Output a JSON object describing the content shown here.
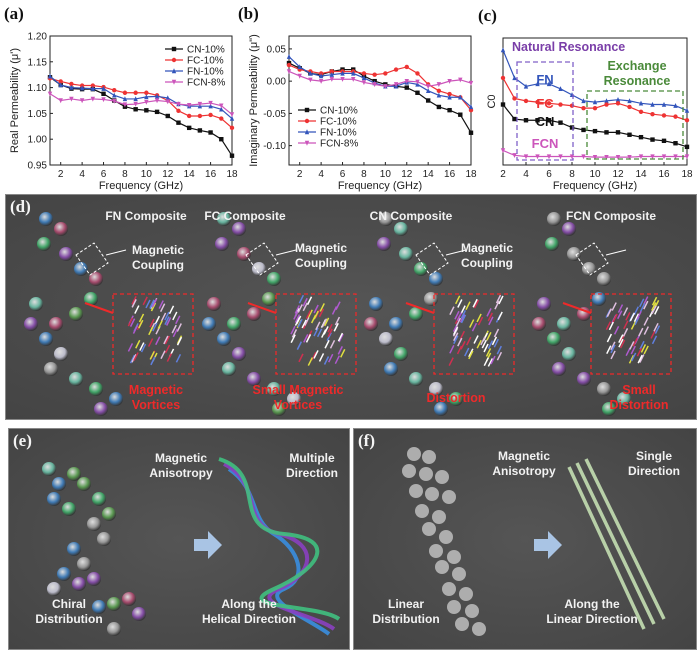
{
  "panels": {
    "a": "(a)",
    "b": "(b)",
    "c": "(c)",
    "d": "(d)",
    "e": "(e)",
    "f": "(f)"
  },
  "chart_data": [
    {
      "type": "line",
      "id": "a",
      "title": "",
      "xlabel": "Frequency (GHz)",
      "ylabel": "Real Permeability (μ')",
      "xlim": [
        1,
        18
      ],
      "ylim": [
        0.95,
        1.2
      ],
      "xticks": [
        2,
        4,
        6,
        8,
        10,
        12,
        14,
        16,
        18
      ],
      "yticks": [
        0.95,
        1.0,
        1.05,
        1.1,
        1.15,
        1.2
      ],
      "ytick_labels": [
        "0.95",
        "1.00",
        "1.05",
        "1.10",
        "1.15",
        "1.20"
      ],
      "legend_position": "top-right",
      "x": [
        1,
        2,
        3,
        4,
        5,
        6,
        7,
        8,
        9,
        10,
        11,
        12,
        13,
        14,
        15,
        16,
        17,
        18
      ],
      "series": [
        {
          "name": "CN-10%",
          "color": "#111111",
          "marker": "square",
          "values": [
            1.12,
            1.105,
            1.098,
            1.097,
            1.097,
            1.088,
            1.075,
            1.063,
            1.058,
            1.056,
            1.053,
            1.045,
            1.032,
            1.022,
            1.017,
            1.013,
            1.0,
            0.968
          ]
        },
        {
          "name": "FC-10%",
          "color": "#ee3333",
          "marker": "circle",
          "values": [
            1.118,
            1.112,
            1.107,
            1.104,
            1.104,
            1.101,
            1.095,
            1.09,
            1.09,
            1.09,
            1.085,
            1.075,
            1.055,
            1.045,
            1.045,
            1.047,
            1.04,
            1.022
          ]
        },
        {
          "name": "FN-10%",
          "color": "#3355bb",
          "marker": "triangle",
          "values": [
            1.122,
            1.105,
            1.1,
            1.099,
            1.098,
            1.098,
            1.085,
            1.078,
            1.078,
            1.082,
            1.083,
            1.08,
            1.068,
            1.064,
            1.064,
            1.064,
            1.058,
            1.04
          ]
        },
        {
          "name": "FCN-8%",
          "color": "#cc55bb",
          "marker": "triangle-down",
          "values": [
            1.088,
            1.075,
            1.078,
            1.075,
            1.078,
            1.077,
            1.074,
            1.067,
            1.068,
            1.072,
            1.075,
            1.073,
            1.068,
            1.066,
            1.068,
            1.07,
            1.065,
            1.048
          ]
        }
      ]
    },
    {
      "type": "line",
      "id": "b",
      "title": "",
      "xlabel": "Frequency (GHz)",
      "ylabel": "Imaginary Permeability (μ\")",
      "xlim": [
        1,
        18
      ],
      "ylim": [
        -0.13,
        0.07
      ],
      "xticks": [
        2,
        4,
        6,
        8,
        10,
        12,
        14,
        16,
        18
      ],
      "yticks": [
        -0.1,
        -0.05,
        0.0,
        0.05
      ],
      "ytick_labels": [
        "-0.10",
        "-0.05",
        "0.00",
        "0.05"
      ],
      "legend_position": "bottom-left",
      "x": [
        1,
        2,
        3,
        4,
        5,
        6,
        7,
        8,
        9,
        10,
        11,
        12,
        13,
        14,
        15,
        16,
        17,
        18
      ],
      "series": [
        {
          "name": "CN-10%",
          "color": "#111111",
          "marker": "square",
          "values": [
            0.028,
            0.02,
            0.012,
            0.01,
            0.015,
            0.018,
            0.018,
            0.008,
            0.0,
            -0.005,
            -0.008,
            -0.01,
            -0.018,
            -0.03,
            -0.04,
            -0.045,
            -0.052,
            -0.08
          ]
        },
        {
          "name": "FC-10%",
          "color": "#ee3333",
          "marker": "circle",
          "values": [
            0.025,
            0.018,
            0.015,
            0.012,
            0.015,
            0.015,
            0.015,
            0.012,
            0.01,
            0.012,
            0.018,
            0.022,
            0.012,
            -0.005,
            -0.015,
            -0.02,
            -0.025,
            -0.045
          ]
        },
        {
          "name": "FN-10%",
          "color": "#3355bb",
          "marker": "triangle",
          "values": [
            0.038,
            0.022,
            0.012,
            0.008,
            0.01,
            0.012,
            0.012,
            0.005,
            -0.003,
            -0.008,
            -0.008,
            -0.002,
            -0.005,
            -0.015,
            -0.022,
            -0.025,
            -0.025,
            -0.04
          ]
        },
        {
          "name": "FCN-8%",
          "color": "#cc55bb",
          "marker": "triangle-down",
          "values": [
            0.015,
            0.008,
            0.002,
            0.0,
            0.003,
            0.003,
            0.003,
            -0.002,
            -0.005,
            -0.008,
            -0.005,
            0.0,
            -0.001,
            -0.008,
            -0.005,
            0.0,
            0.002,
            -0.003
          ]
        }
      ]
    },
    {
      "type": "line",
      "id": "c",
      "title": "",
      "xlabel": "Frequency (GHz)",
      "ylabel": "C0",
      "xlim": [
        2,
        18
      ],
      "ylim": [
        0,
        1.05
      ],
      "xticks": [
        2,
        4,
        6,
        8,
        10,
        12,
        14,
        16,
        18
      ],
      "yticks": [],
      "ytick_labels": [],
      "x": [
        2,
        3,
        4,
        5,
        6,
        7,
        8,
        9,
        10,
        11,
        12,
        13,
        14,
        15,
        16,
        17,
        18
      ],
      "series": [
        {
          "name": "FN",
          "color": "#3355bb",
          "marker": "triangle",
          "values": [
            0.95,
            0.72,
            0.65,
            0.67,
            0.67,
            0.63,
            0.58,
            0.53,
            0.52,
            0.53,
            0.54,
            0.53,
            0.51,
            0.5,
            0.5,
            0.49,
            0.45
          ]
        },
        {
          "name": "FC",
          "color": "#ee3333",
          "marker": "circle",
          "values": [
            0.72,
            0.55,
            0.53,
            0.52,
            0.51,
            0.5,
            0.49,
            0.47,
            0.47,
            0.5,
            0.51,
            0.48,
            0.44,
            0.42,
            0.41,
            0.4,
            0.37
          ]
        },
        {
          "name": "CN",
          "color": "#111111",
          "marker": "square",
          "values": [
            0.5,
            0.38,
            0.37,
            0.37,
            0.37,
            0.35,
            0.31,
            0.29,
            0.28,
            0.27,
            0.27,
            0.25,
            0.23,
            0.21,
            0.2,
            0.18,
            0.15
          ]
        },
        {
          "name": "FCN",
          "color": "#cc55bb",
          "marker": "triangle-down",
          "values": [
            0.12,
            0.08,
            0.07,
            0.07,
            0.07,
            0.07,
            0.07,
            0.07,
            0.065,
            0.065,
            0.065,
            0.065,
            0.07,
            0.07,
            0.07,
            0.07,
            0.07
          ]
        }
      ],
      "annotations": {
        "natural": "Natural Resonance",
        "natural_color": "#7a3ea8",
        "exchange_1": "Exchange",
        "exchange_2": "Resonance",
        "exchange_color": "#4a8a3a"
      }
    }
  ],
  "panel_d": {
    "composites": [
      "FN Composite",
      "FC Composite",
      "CN Composite",
      "FCN Composite"
    ],
    "coupling_1": "Magnetic",
    "coupling_2": "Coupling",
    "effects": [
      [
        "Magnetic",
        "Vortices"
      ],
      [
        "Small Magnetic",
        "Vortices"
      ],
      [
        "Distortion",
        ""
      ],
      [
        "Small",
        "Distortion"
      ]
    ]
  },
  "panel_e": {
    "anisotropy": [
      "Magnetic",
      "Anisotropy"
    ],
    "direction": [
      "Multiple",
      "Direction"
    ],
    "distribution": [
      "Chiral",
      "Distribution"
    ],
    "along": [
      "Along the",
      "Helical Direction"
    ]
  },
  "panel_f": {
    "anisotropy": [
      "Magnetic",
      "Anisotropy"
    ],
    "direction": [
      "Single",
      "Direction"
    ],
    "distribution": [
      "Linear",
      "Distribution"
    ],
    "along": [
      "Along the",
      "Linear Direction"
    ]
  },
  "colors": {
    "panel_bg": "#4b4b4b",
    "red": "#ee2a2a",
    "arrow": "#a9c4e4"
  }
}
